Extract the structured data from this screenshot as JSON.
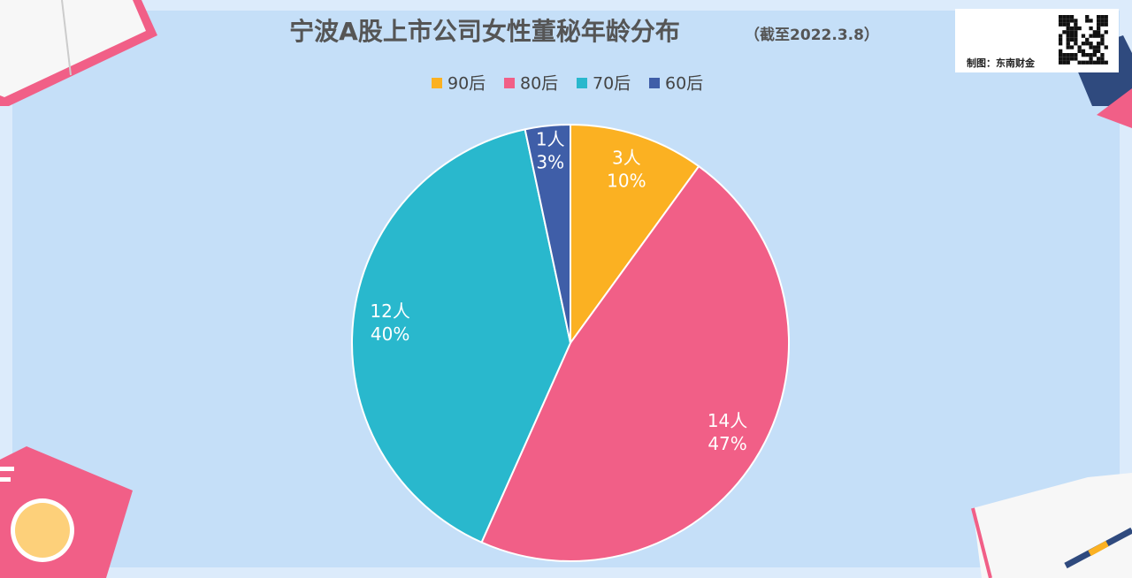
{
  "chart_data": {
    "type": "pie",
    "title": "宁波A股上市公司女性董秘年龄分布",
    "subtitle": "（截至2022.3.8）",
    "credit": "制图：东南财金",
    "categories": [
      "90后",
      "80后",
      "70后",
      "60后"
    ],
    "values": [
      3,
      14,
      12,
      1
    ],
    "value_labels": [
      "3人",
      "14人",
      "12人",
      "1人"
    ],
    "percents": [
      10,
      47,
      40,
      3
    ],
    "percent_labels": [
      "10%",
      "47%",
      "40%",
      "3%"
    ],
    "colors": [
      "#fbb122",
      "#f15f87",
      "#29b8cd",
      "#3f5ea8"
    ],
    "legend": "top"
  }
}
